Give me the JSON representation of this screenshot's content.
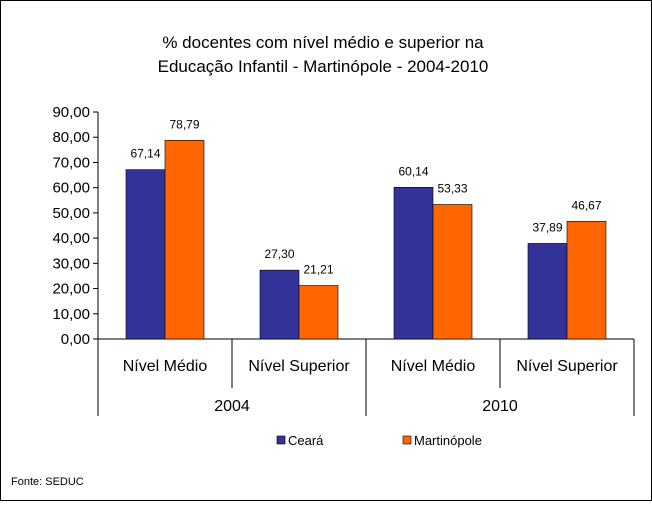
{
  "chart_data": {
    "type": "bar",
    "title_lines": [
      "% docentes com nível médio e superior na",
      "Educação Infantil - Martinópole - 2004-2010"
    ],
    "groups": [
      "2004",
      "2010"
    ],
    "categories": [
      "Nível Médio",
      "Nível Superior",
      "Nível Médio",
      "Nível Superior"
    ],
    "category_group": [
      0,
      0,
      1,
      1
    ],
    "series": [
      {
        "name": "Ceará",
        "color": "#333399",
        "values": [
          67.14,
          27.3,
          60.14,
          37.89
        ],
        "labels": [
          "67,14",
          "27,30",
          "60,14",
          "37,89"
        ]
      },
      {
        "name": "Martinópole",
        "color": "#FF6600",
        "values": [
          78.79,
          21.21,
          53.33,
          46.67
        ],
        "labels": [
          "78,79",
          "21,21",
          "53,33",
          "46,67"
        ]
      }
    ],
    "ylim": [
      0,
      90
    ],
    "yticks": [
      0,
      10,
      20,
      30,
      40,
      50,
      60,
      70,
      80,
      90
    ],
    "ytick_labels": [
      "0,00",
      "10,00",
      "20,00",
      "30,00",
      "40,00",
      "50,00",
      "60,00",
      "70,00",
      "80,00",
      "90,00"
    ],
    "grid": false,
    "legend_position": "bottom",
    "source": "Fonte: SEDUC"
  }
}
